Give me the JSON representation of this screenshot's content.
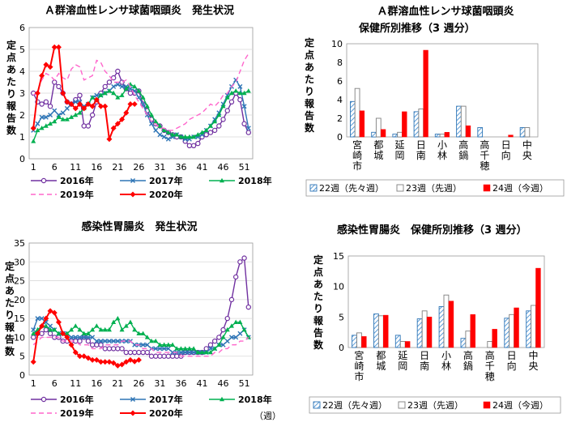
{
  "colors": {
    "y2016": "#7030a0",
    "y2017": "#2e75b6",
    "y2018": "#00b050",
    "y2019": "#ff66cc",
    "y2020": "#ff0000",
    "w22_stroke": "#2e75b6",
    "w23_stroke": "#7f7f7f",
    "w24_fill": "#ff0000"
  },
  "chart_data": [
    {
      "id": "strep-trend",
      "type": "line",
      "title": "Ａ群溶血性レンサ球菌咽頭炎　発生状況",
      "ylabel": "定点あたり報告数",
      "xlabel": "",
      "ylim": [
        0,
        6
      ],
      "yticks": [
        0,
        1,
        2,
        3,
        4,
        5,
        6
      ],
      "xticks": [
        1,
        6,
        11,
        16,
        21,
        26,
        31,
        36,
        41,
        46,
        51
      ],
      "xlim": [
        0,
        53
      ],
      "grid": "horizontal",
      "legend": "bottom",
      "series": [
        {
          "name": "2016年",
          "color_key": "y2016",
          "dash": "",
          "marker": "circle",
          "values": [
            3.0,
            2.6,
            2.5,
            2.6,
            2.4,
            3.5,
            3.3,
            3.0,
            2.6,
            2.5,
            2.7,
            2.9,
            1.5,
            1.5,
            2.0,
            2.6,
            3.0,
            3.3,
            3.5,
            3.7,
            4.0,
            3.5,
            3.2,
            3.0,
            3.0,
            3.1,
            2.5,
            2.2,
            1.8,
            1.6,
            1.5,
            1.3,
            1.2,
            1.1,
            1.0,
            1.0,
            0.8,
            0.6,
            0.6,
            0.7,
            1.0,
            1.1,
            1.2,
            1.3,
            1.5,
            1.8,
            2.2,
            2.6,
            3.0,
            2.7,
            1.6,
            1.2
          ]
        },
        {
          "name": "2017年",
          "color_key": "y2017",
          "dash": "",
          "marker": "x",
          "values": [
            1.3,
            1.6,
            1.9,
            1.9,
            2.0,
            2.2,
            2.0,
            2.1,
            2.3,
            2.5,
            2.6,
            2.6,
            2.4,
            2.5,
            2.8,
            2.9,
            2.9,
            3.0,
            3.1,
            3.3,
            3.4,
            3.3,
            3.3,
            3.2,
            3.1,
            2.8,
            2.5,
            2.0,
            1.6,
            1.3,
            1.1,
            1.0,
            0.9,
            1.0,
            1.1,
            1.0,
            0.9,
            0.9,
            1.0,
            1.0,
            1.1,
            1.3,
            1.5,
            1.8,
            2.1,
            2.5,
            2.9,
            3.3,
            3.6,
            3.3,
            2.4,
            1.4
          ]
        },
        {
          "name": "2018年",
          "color_key": "y2018",
          "dash": "",
          "marker": "triangle",
          "values": [
            0.8,
            1.3,
            1.4,
            1.5,
            1.6,
            1.7,
            1.9,
            1.8,
            1.8,
            1.9,
            2.0,
            2.1,
            2.3,
            2.5,
            2.8,
            2.7,
            2.9,
            3.0,
            3.1,
            3.0,
            2.8,
            2.9,
            3.2,
            3.4,
            3.3,
            3.1,
            2.8,
            2.4,
            2.0,
            1.7,
            1.5,
            1.3,
            1.2,
            1.1,
            1.1,
            1.0,
            1.0,
            1.0,
            1.0,
            1.1,
            1.2,
            1.3,
            1.5,
            1.7,
            2.0,
            2.4,
            2.8,
            3.0,
            3.1,
            3.0,
            3.0,
            3.1
          ]
        },
        {
          "name": "2019年",
          "color_key": "y2019",
          "dash": "6,4",
          "marker": "none",
          "values": [
            2.9,
            3.1,
            3.6,
            3.9,
            3.8,
            3.6,
            3.9,
            3.7,
            3.6,
            4.1,
            4.3,
            4.2,
            3.6,
            3.7,
            3.8,
            4.5,
            4.4,
            4.0,
            3.8,
            3.5,
            3.5,
            3.5,
            3.6,
            3.3,
            2.9,
            2.6,
            2.3,
            2.0,
            1.7,
            1.6,
            1.4,
            1.4,
            1.3,
            1.3,
            1.4,
            1.5,
            1.6,
            1.8,
            1.9,
            2.0,
            2.1,
            2.3,
            2.5,
            2.4,
            2.6,
            2.9,
            3.0,
            3.3,
            3.5,
            4.0,
            4.5,
            4.8
          ]
        },
        {
          "name": "2020年",
          "color_key": "y2020",
          "dash": "",
          "marker": "diamond",
          "values": [
            1.4,
            3.0,
            3.8,
            4.3,
            4.2,
            5.1,
            5.1,
            3.0,
            2.6,
            2.5,
            2.3,
            2.5,
            2.3,
            2.5,
            2.4,
            2.7,
            2.4,
            2.4,
            0.9,
            1.4,
            1.6,
            1.8,
            2.1,
            2.5,
            2.5
          ]
        }
      ]
    },
    {
      "id": "strep-district",
      "type": "bar",
      "title": [
        "Ａ群溶血性レンサ球菌咽頭炎",
        "保健所別推移（3 週分）"
      ],
      "ylabel": "定点あたり報告数",
      "ylim": [
        0,
        10
      ],
      "yticks": [
        0,
        2,
        4,
        6,
        8,
        10
      ],
      "grid": "none",
      "legend": "bottom",
      "categories": [
        "宮崎市",
        "都城",
        "延岡",
        "日南",
        "小林",
        "高鍋",
        "高千穂",
        "日向",
        "中央"
      ],
      "series": [
        {
          "name": "22週（先々週）",
          "style": "hatch",
          "values": [
            3.8,
            0.5,
            0.3,
            2.7,
            0.3,
            3.3,
            1.0,
            0,
            1.0
          ]
        },
        {
          "name": "23週（先週）",
          "style": "hollow",
          "values": [
            5.2,
            2.0,
            0.5,
            3.0,
            0.3,
            3.3,
            0,
            0,
            1.0
          ]
        },
        {
          "name": "24週（今週）",
          "style": "solid",
          "values": [
            2.8,
            0.8,
            2.7,
            9.3,
            0.5,
            1.2,
            0,
            0.2,
            0
          ]
        }
      ]
    },
    {
      "id": "gastro-trend",
      "type": "line",
      "title": "感染性胃腸炎　発生状況",
      "ylabel": "定点あたり報告数",
      "xlabel": "（週）",
      "ylim": [
        0,
        35
      ],
      "yticks": [
        0,
        5,
        10,
        15,
        20,
        25,
        30,
        35
      ],
      "xticks": [
        1,
        6,
        11,
        16,
        21,
        26,
        31,
        36,
        41,
        46,
        51
      ],
      "xlim": [
        0,
        53
      ],
      "grid": "horizontal",
      "legend": "bottom",
      "series": [
        {
          "name": "2016年",
          "color_key": "y2016",
          "dash": "",
          "marker": "circle",
          "values": [
            10,
            11,
            11,
            12,
            11,
            10,
            10,
            9,
            9,
            9,
            9,
            9,
            10,
            9,
            8,
            8,
            8,
            7,
            7,
            7,
            7,
            7,
            6,
            6,
            6,
            6,
            6,
            6,
            5,
            5,
            5,
            5,
            5,
            5,
            5,
            5,
            6,
            6,
            6,
            6,
            6,
            7,
            8,
            9,
            10,
            12,
            15,
            20,
            26,
            30,
            31,
            18
          ]
        },
        {
          "name": "2017年",
          "color_key": "y2017",
          "dash": "",
          "marker": "x",
          "values": [
            12,
            15,
            15,
            14,
            13,
            12,
            11,
            11,
            11,
            10,
            10,
            10,
            10,
            10,
            10,
            9,
            9,
            9,
            9,
            9,
            9,
            9,
            9,
            9,
            8,
            8,
            8,
            8,
            7,
            7,
            7,
            7,
            7,
            6,
            6,
            6,
            6,
            6,
            6,
            6,
            6,
            6,
            7,
            7,
            8,
            8,
            9,
            10,
            10,
            11,
            12,
            10
          ]
        },
        {
          "name": "2018年",
          "color_key": "y2018",
          "dash": "",
          "marker": "triangle",
          "values": [
            11,
            12,
            13,
            13,
            12,
            12,
            11,
            11,
            11,
            12,
            13,
            12,
            11,
            11,
            12,
            13,
            12,
            12,
            12,
            14,
            15,
            12,
            13,
            14,
            12,
            11,
            11,
            10,
            9,
            9,
            8,
            8,
            8,
            8,
            7,
            7,
            7,
            7,
            7,
            6,
            6,
            6,
            6,
            7,
            8,
            10,
            12,
            13,
            14,
            14,
            12,
            10
          ]
        },
        {
          "name": "2019年",
          "color_key": "y2019",
          "dash": "6,4",
          "marker": "none",
          "values": [
            8,
            9,
            10,
            10,
            10,
            10,
            10,
            9,
            9,
            9,
            9,
            8,
            8,
            8,
            7,
            7,
            7,
            8,
            8,
            8,
            8,
            9,
            9,
            9,
            8,
            8,
            7,
            7,
            7,
            6,
            6,
            6,
            6,
            6,
            6,
            5,
            5,
            5,
            5,
            5,
            5,
            5,
            5,
            6,
            6,
            7,
            7,
            8,
            8,
            9,
            9,
            10
          ]
        },
        {
          "name": "2020年",
          "color_key": "y2020",
          "dash": "",
          "marker": "diamond",
          "values": [
            3.5,
            11,
            13,
            15,
            17,
            16.5,
            14,
            11,
            10,
            8,
            6,
            5,
            5,
            4.5,
            4,
            4,
            3.5,
            3.5,
            3.5,
            3.2,
            2.5,
            2.8,
            3.5,
            4,
            3.6,
            4
          ]
        }
      ]
    },
    {
      "id": "gastro-district",
      "type": "bar",
      "title": [
        "感染性胃腸炎　保健所別推移（3 週分）"
      ],
      "ylabel": "定点あたり報告数",
      "ylim": [
        0,
        15
      ],
      "yticks": [
        0,
        5,
        10,
        15
      ],
      "grid": "none",
      "legend": "bottom",
      "categories": [
        "宮崎市",
        "都城",
        "延岡",
        "日南",
        "小林",
        "高鍋",
        "高千穂",
        "日向",
        "中央"
      ],
      "series": [
        {
          "name": "22週（先々週）",
          "style": "hatch",
          "values": [
            2.0,
            5.5,
            2.0,
            4.7,
            6.7,
            1.5,
            0,
            4.8,
            6.0
          ]
        },
        {
          "name": "23週（先週）",
          "style": "hollow",
          "values": [
            2.4,
            5.2,
            1.0,
            6.0,
            8.6,
            2.7,
            1.0,
            5.4,
            6.9
          ]
        },
        {
          "name": "24週（今週）",
          "style": "solid",
          "values": [
            1.8,
            5.3,
            1.0,
            5.0,
            7.6,
            5.4,
            3.0,
            6.5,
            13.0
          ]
        }
      ]
    }
  ]
}
